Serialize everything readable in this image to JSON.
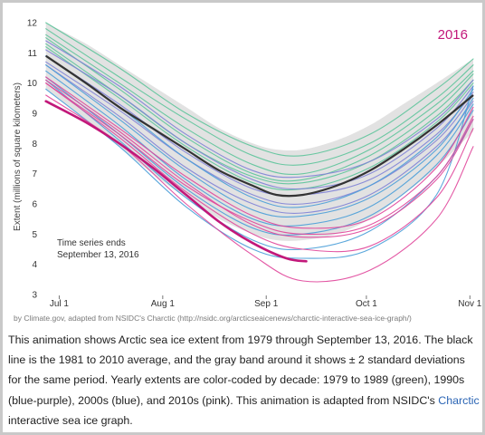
{
  "chart_data": {
    "type": "line",
    "ylabel": "Extent (millions of square kilometers)",
    "yticks": [
      3,
      4,
      5,
      6,
      7,
      8,
      9,
      10,
      11,
      12
    ],
    "ylim": [
      3,
      12.3
    ],
    "xticks": [
      "Jul 1",
      "Aug 1",
      "Sep 1",
      "Oct 1",
      "Nov 1"
    ],
    "xtick_days": [
      182,
      213,
      244,
      274,
      305
    ],
    "xlim_days": [
      177,
      306
    ],
    "highlight_year_label": "2016",
    "note_line1": "Time series ends",
    "note_line2": "September 13, 2016",
    "grid": false,
    "colors": {
      "1980s": "#5cc49a",
      "1990s": "#7f82d6",
      "2000s": "#4a9ed8",
      "2010s": "#e0459a",
      "average": "#333333",
      "band": "#e2e2e2",
      "highlight": "#c2187a"
    },
    "average": {
      "name": "1981 to 2010 average",
      "x": [
        178,
        190,
        200,
        210,
        220,
        230,
        240,
        247,
        255,
        265,
        275,
        285,
        295,
        306
      ],
      "y": [
        10.9,
        10.0,
        9.2,
        8.5,
        7.8,
        7.1,
        6.6,
        6.3,
        6.3,
        6.6,
        7.1,
        7.8,
        8.6,
        9.6
      ]
    },
    "band": {
      "x": [
        178,
        190,
        200,
        210,
        220,
        230,
        240,
        247,
        255,
        265,
        275,
        285,
        295,
        306
      ],
      "upper": [
        12.0,
        11.3,
        10.6,
        9.9,
        9.2,
        8.5,
        8.0,
        7.8,
        7.8,
        8.1,
        8.6,
        9.3,
        10.0,
        10.8
      ],
      "lower": [
        9.8,
        8.8,
        7.9,
        7.0,
        6.2,
        5.5,
        5.0,
        4.8,
        4.8,
        5.0,
        5.5,
        6.3,
        7.2,
        8.4
      ]
    },
    "series": [
      {
        "decade": "1980s",
        "x": [
          178,
          200,
          220,
          240,
          255,
          275,
          295,
          306
        ],
        "y": [
          12.0,
          10.5,
          9.0,
          7.9,
          7.6,
          8.3,
          9.8,
          10.8
        ]
      },
      {
        "decade": "1980s",
        "x": [
          178,
          200,
          220,
          240,
          255,
          275,
          295,
          306
        ],
        "y": [
          11.8,
          10.2,
          8.8,
          7.6,
          7.3,
          8.0,
          9.5,
          10.6
        ]
      },
      {
        "decade": "1980s",
        "x": [
          178,
          200,
          220,
          240,
          255,
          275,
          295,
          306
        ],
        "y": [
          11.6,
          10.0,
          8.5,
          7.3,
          7.0,
          7.8,
          9.3,
          10.4
        ]
      },
      {
        "decade": "1980s",
        "x": [
          178,
          200,
          220,
          240,
          255,
          275,
          295,
          306
        ],
        "y": [
          11.5,
          9.8,
          8.2,
          7.0,
          6.8,
          7.6,
          9.1,
          10.3
        ]
      },
      {
        "decade": "1980s",
        "x": [
          178,
          200,
          220,
          240,
          255,
          275,
          295,
          306
        ],
        "y": [
          11.3,
          9.6,
          8.0,
          6.9,
          6.7,
          7.4,
          8.9,
          10.1
        ]
      },
      {
        "decade": "1980s",
        "x": [
          178,
          200,
          220,
          240,
          255,
          275,
          295,
          306
        ],
        "y": [
          11.2,
          9.5,
          7.9,
          6.7,
          6.5,
          7.2,
          8.7,
          10.0
        ]
      },
      {
        "decade": "1990s",
        "x": [
          178,
          200,
          220,
          240,
          255,
          275,
          295,
          306
        ],
        "y": [
          11.4,
          9.9,
          8.3,
          7.1,
          6.9,
          7.4,
          8.8,
          10.1
        ]
      },
      {
        "decade": "1990s",
        "x": [
          178,
          200,
          220,
          240,
          255,
          275,
          295,
          306
        ],
        "y": [
          11.1,
          9.6,
          8.0,
          6.8,
          6.5,
          7.0,
          8.5,
          9.9
        ]
      },
      {
        "decade": "1990s",
        "x": [
          178,
          200,
          220,
          240,
          255,
          275,
          295,
          306
        ],
        "y": [
          10.9,
          9.3,
          7.7,
          6.5,
          6.3,
          6.8,
          8.3,
          9.7
        ]
      },
      {
        "decade": "1990s",
        "x": [
          178,
          200,
          220,
          240,
          255,
          275,
          295,
          306
        ],
        "y": [
          10.7,
          9.1,
          7.5,
          6.3,
          6.0,
          6.6,
          8.1,
          9.6
        ]
      },
      {
        "decade": "1990s",
        "x": [
          178,
          200,
          220,
          240,
          255,
          275,
          295,
          306
        ],
        "y": [
          10.6,
          8.9,
          7.2,
          6.0,
          5.7,
          6.3,
          7.9,
          9.4
        ]
      },
      {
        "decade": "2000s",
        "x": [
          178,
          200,
          220,
          240,
          255,
          275,
          295,
          306
        ],
        "y": [
          10.9,
          9.2,
          7.5,
          6.2,
          5.9,
          6.6,
          8.2,
          9.8
        ]
      },
      {
        "decade": "2000s",
        "x": [
          178,
          200,
          220,
          240,
          255,
          275,
          295,
          306
        ],
        "y": [
          10.6,
          8.8,
          7.1,
          5.8,
          5.6,
          6.2,
          7.8,
          9.5
        ]
      },
      {
        "decade": "2000s",
        "x": [
          178,
          200,
          220,
          240,
          255,
          275,
          295,
          306
        ],
        "y": [
          10.4,
          8.6,
          6.8,
          5.5,
          5.3,
          5.9,
          7.6,
          9.3
        ]
      },
      {
        "decade": "2000s",
        "x": [
          178,
          200,
          220,
          240,
          255,
          275,
          295,
          306
        ],
        "y": [
          10.2,
          8.3,
          6.5,
          5.2,
          5.0,
          5.6,
          7.3,
          9.1
        ]
      },
      {
        "decade": "2000s",
        "x": [
          178,
          200,
          220,
          240,
          255,
          275,
          295,
          306
        ],
        "y": [
          10.1,
          8.1,
          6.2,
          4.8,
          4.5,
          5.1,
          6.9,
          8.8
        ]
      },
      {
        "decade": "2000s",
        "x": [
          178,
          200,
          220,
          240,
          255,
          275,
          295,
          306
        ],
        "y": [
          9.8,
          7.9,
          5.9,
          4.5,
          4.2,
          4.5,
          6.3,
          9.9
        ]
      },
      {
        "decade": "2010s",
        "x": [
          178,
          200,
          220,
          240,
          255,
          275,
          295,
          306
        ],
        "y": [
          10.0,
          8.3,
          6.6,
          5.4,
          5.0,
          5.3,
          6.9,
          8.9
        ]
      },
      {
        "decade": "2010s",
        "x": [
          178,
          200,
          220,
          240,
          255,
          275,
          295,
          306
        ],
        "y": [
          10.1,
          8.4,
          6.7,
          5.3,
          4.9,
          5.2,
          6.8,
          8.8
        ]
      },
      {
        "decade": "2010s",
        "x": [
          178,
          200,
          220,
          240,
          255,
          275,
          295,
          306
        ],
        "y": [
          10.2,
          8.5,
          6.9,
          5.6,
          5.2,
          5.5,
          7.2,
          9.2
        ]
      },
      {
        "decade": "2010s",
        "x": [
          178,
          200,
          220,
          240,
          255,
          275,
          295,
          306
        ],
        "y": [
          10.0,
          8.2,
          6.4,
          5.0,
          4.5,
          4.6,
          6.2,
          8.5
        ]
      },
      {
        "decade": "2010s",
        "x": [
          178,
          200,
          220,
          240,
          255,
          275,
          295,
          306
        ],
        "y": [
          9.6,
          8.0,
          6.0,
          4.3,
          3.45,
          3.8,
          5.5,
          7.9
        ]
      },
      {
        "decade": "2016",
        "x": [
          178,
          190,
          200,
          210,
          220,
          230,
          240,
          250,
          256
        ],
        "y": [
          9.4,
          8.7,
          8.0,
          7.2,
          6.3,
          5.4,
          4.7,
          4.2,
          4.1
        ]
      }
    ]
  },
  "credit_text": "by Climate.gov, adapted from NSIDC's Charctic (http://nsidc.org/arcticseaicenews/charctic-interactive-sea-ice-graph/)",
  "caption": {
    "text_before_link": "This animation shows Arctic sea ice extent from 1979 through September 13, 2016. The black line is the 1981 to 2010 average, and the gray band around it shows ± 2 standard deviations for the same period. Yearly extents are color-coded by decade: 1979 to 1989 (green), 1990s (blue-purple), 2000s (blue), and 2010s (pink). This animation is adapted from NSIDC's ",
    "link_text": "Charctic",
    "text_after_link": " interactive sea ice graph."
  }
}
